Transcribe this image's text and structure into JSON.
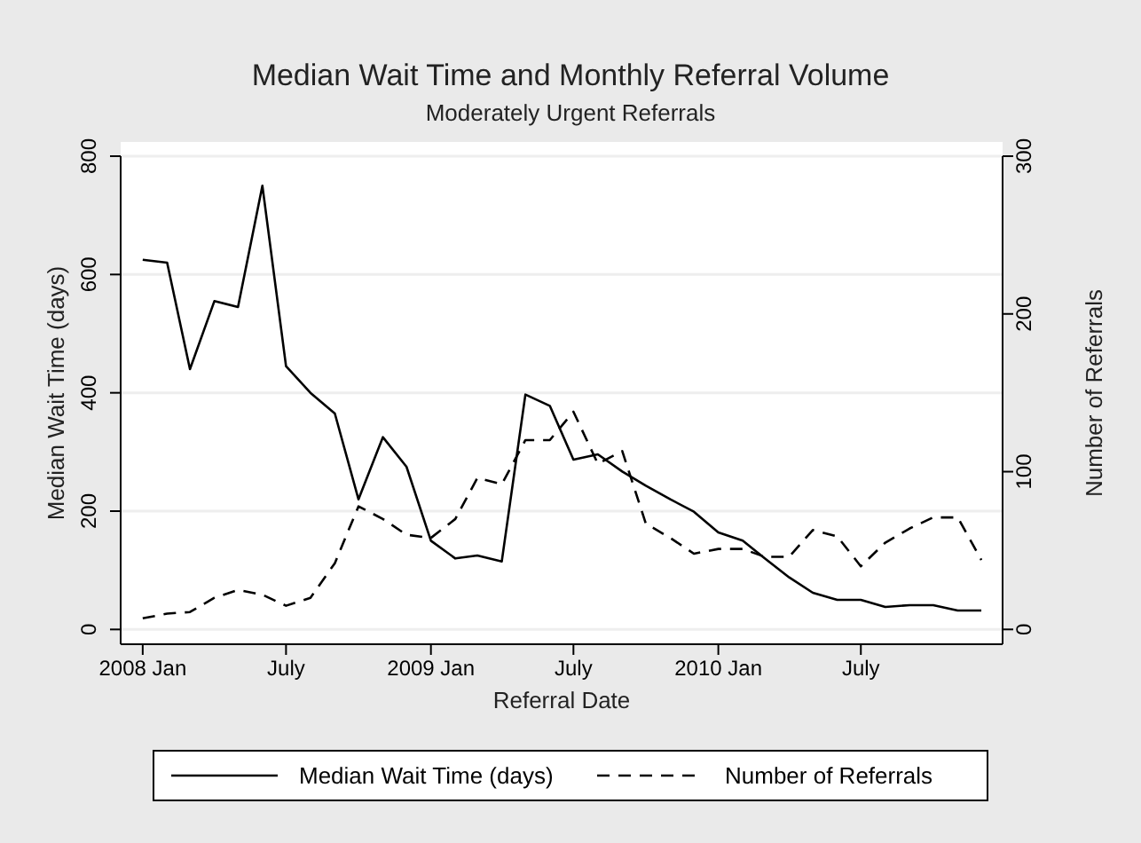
{
  "chart_data": {
    "type": "line",
    "title": "Median Wait Time and Monthly Referral Volume",
    "subtitle": "Moderately Urgent Referrals",
    "xlabel": "Referral Date",
    "ylabel": "Median Wait Time (days)",
    "y2label": "Number of Referrals",
    "x": [
      "2008-01",
      "2008-02",
      "2008-03",
      "2008-04",
      "2008-05",
      "2008-06",
      "2008-07",
      "2008-08",
      "2008-09",
      "2008-10",
      "2008-11",
      "2008-12",
      "2009-01",
      "2009-02",
      "2009-03",
      "2009-04",
      "2009-05",
      "2009-06",
      "2009-07",
      "2009-08",
      "2009-09",
      "2009-10",
      "2009-11",
      "2009-12",
      "2010-01",
      "2010-02",
      "2010-03",
      "2010-04",
      "2010-05",
      "2010-06",
      "2010-07",
      "2010-08",
      "2010-09",
      "2010-10",
      "2010-11",
      "2010-12"
    ],
    "series": [
      {
        "name": "Median Wait Time (days)",
        "color": "#000000",
        "line_style": "solid",
        "values": [
          625,
          620,
          440,
          555,
          545,
          750,
          445,
          400,
          365,
          220,
          325,
          275,
          150,
          120,
          125,
          115,
          397,
          378,
          287,
          296,
          267,
          243,
          220,
          199,
          164,
          150,
          120,
          88,
          62,
          50,
          50,
          38,
          41,
          41,
          32,
          32
        ]
      },
      {
        "name": "Number of Referrals",
        "color": "#000000",
        "line_style": "dashed",
        "axis": "y2",
        "values": [
          7,
          10,
          11,
          20,
          25,
          22,
          15,
          20,
          42,
          78,
          70,
          60,
          58,
          70,
          96,
          92,
          120,
          120,
          138,
          105,
          113,
          67,
          58,
          48,
          51,
          51,
          46,
          46,
          63,
          59,
          40,
          55,
          64,
          71,
          71,
          44
        ]
      }
    ],
    "xlim": [
      "2007-12-04",
      "2010-12-28"
    ],
    "xticks": [
      {
        "value": "2008-01",
        "label": "2008 Jan"
      },
      {
        "value": "2008-07",
        "label": "July"
      },
      {
        "value": "2009-01",
        "label": "2009 Jan"
      },
      {
        "value": "2009-07",
        "label": "July"
      },
      {
        "value": "2010-01",
        "label": "2010 Jan"
      },
      {
        "value": "2010-07",
        "label": "July"
      }
    ],
    "ylim": [
      -25,
      800
    ],
    "yticks": [
      0,
      200,
      400,
      600,
      800
    ],
    "y2lim": [
      -9.4,
      300
    ],
    "y2ticks": [
      0,
      100,
      200,
      300
    ],
    "grid": "y",
    "legend": "bottom"
  }
}
